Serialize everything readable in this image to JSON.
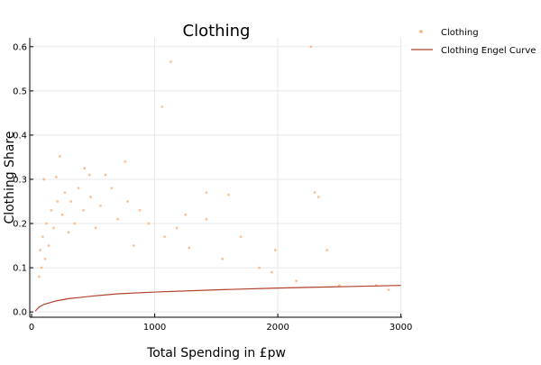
{
  "chart_data": {
    "type": "scatter",
    "title": "Clothing",
    "xlabel": "Total Spending in £pw",
    "ylabel": "Clothing Share",
    "xlim": [
      -15,
      3010
    ],
    "ylim": [
      -0.012,
      0.62
    ],
    "x_ticks": [
      0,
      1000,
      2000,
      3000
    ],
    "y_ticks": [
      0.0,
      0.1,
      0.2,
      0.3,
      0.4,
      0.5,
      0.6
    ],
    "grid": true,
    "legend_position": "top-right, outside plot",
    "legend": [
      "Clothing",
      "Clothing Engel Curve"
    ],
    "colors": {
      "scatter": "#ff8c3c",
      "curve": "#b2402a",
      "grid": "#e8e8e8",
      "axis": "#000000"
    },
    "series": [
      {
        "name": "Clothing",
        "kind": "scatter",
        "points": [
          [
            2270,
            0.6
          ],
          [
            1130,
            0.566
          ],
          [
            1060,
            0.464
          ],
          [
            230,
            0.352
          ],
          [
            200,
            0.305
          ],
          [
            100,
            0.3
          ],
          [
            430,
            0.325
          ],
          [
            470,
            0.31
          ],
          [
            600,
            0.31
          ],
          [
            760,
            0.34
          ],
          [
            1420,
            0.27
          ],
          [
            1600,
            0.265
          ],
          [
            2300,
            0.27
          ],
          [
            2330,
            0.26
          ],
          [
            2400,
            0.14
          ],
          [
            1700,
            0.17
          ],
          [
            1280,
            0.145
          ],
          [
            1850,
            0.1
          ],
          [
            1950,
            0.09
          ],
          [
            2150,
            0.07
          ],
          [
            2500,
            0.06
          ],
          [
            2800,
            0.06
          ],
          [
            2900,
            0.05
          ],
          [
            1980,
            0.14
          ],
          [
            1550,
            0.12
          ],
          [
            1420,
            0.21
          ],
          [
            1250,
            0.22
          ],
          [
            1180,
            0.19
          ],
          [
            1080,
            0.17
          ],
          [
            950,
            0.2
          ],
          [
            880,
            0.23
          ],
          [
            830,
            0.15
          ],
          [
            780,
            0.25
          ],
          [
            700,
            0.21
          ],
          [
            650,
            0.28
          ],
          [
            560,
            0.24
          ],
          [
            520,
            0.19
          ],
          [
            480,
            0.26
          ],
          [
            420,
            0.23
          ],
          [
            380,
            0.28
          ],
          [
            350,
            0.2
          ],
          [
            320,
            0.25
          ],
          [
            300,
            0.18
          ],
          [
            270,
            0.27
          ],
          [
            250,
            0.22
          ],
          [
            210,
            0.25
          ],
          [
            180,
            0.19
          ],
          [
            160,
            0.23
          ],
          [
            140,
            0.15
          ],
          [
            120,
            0.2
          ],
          [
            110,
            0.12
          ],
          [
            90,
            0.17
          ],
          [
            80,
            0.1
          ],
          [
            70,
            0.14
          ],
          [
            60,
            0.08
          ]
        ]
      },
      {
        "name": "Clothing Engel Curve",
        "kind": "line",
        "x": [
          30,
          60,
          100,
          150,
          200,
          300,
          400,
          500,
          700,
          1000,
          1500,
          2000,
          2500,
          3000
        ],
        "y": [
          0.002,
          0.011,
          0.017,
          0.021,
          0.025,
          0.03,
          0.033,
          0.036,
          0.041,
          0.045,
          0.05,
          0.054,
          0.057,
          0.06
        ]
      }
    ]
  }
}
